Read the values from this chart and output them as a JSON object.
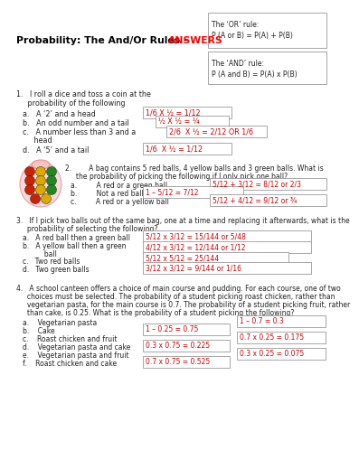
{
  "title_black": "Probability: The And/Or Rules - ",
  "title_red": "ANSWERS",
  "bg_color": "#ffffff",
  "or_rule_box": {
    "title": "The ‘OR’ rule:",
    "body": "P (A or B) = P(A) + P(B)"
  },
  "and_rule_box": {
    "title": "The ‘AND’ rule:",
    "body": "P (A and B) = P(A) x P(B)"
  },
  "q1_intro": "1.   I roll a dice and toss a coin at the\n     probability of the following",
  "q1_items": [
    "a.   A ‘2’ and a head",
    "b.   An odd number and a tail",
    "c.   A number less than 3 and a\n          head",
    "d.   A ‘5’ and a tail"
  ],
  "q1_answers": [
    "1/6 X ½ = 1/12",
    "½ X ½ = ¼",
    "2/6  X ½ = 2/12 OR 1/6",
    "1/6  X ½ = 1/12"
  ],
  "q2_line1": "2.        A bag contains 5 red balls, 4 yellow balls and 3 green balls. What is",
  "q2_line2": "     the probability of picking the following if I only pick one ball?",
  "q2_items": [
    "a.         A red or a green ball",
    "b.         Not a red ball",
    "c.         A red or a yellow ball"
  ],
  "q2_ans_mid": [
    "",
    "1 – 5/12 = 7/12",
    ""
  ],
  "q2_ans_right": [
    "5/12 + 3/12 = 8/12 or 2/3",
    "",
    "5/12 + 4/12 = 9/12 or ¾"
  ],
  "q3_line1": "3.   If I pick two balls out of the same bag, one at a time and replacing it afterwards, what is the",
  "q3_line2": "     probability of selecting the following?",
  "q3_items": [
    "a.   A red ball then a green ball",
    "b.   A yellow ball then a green\n          ball",
    "c.   Two red balls",
    "d.   Two green balls"
  ],
  "q3_answers": [
    "5/12 x 3/12 = 15/144 or 5/48",
    "4/12 x 3/12 = 12/144 or 1/12",
    "5/12 x 5/12 = 25/144",
    "3/12 x 3/12 = 9/144 or 1/16"
  ],
  "q4_line1": "4.   A school canteen offers a choice of main course and pudding. For each course, one of two",
  "q4_line2": "     choices must be selected. The probability of a student picking roast chicken, rather than",
  "q4_line3": "     vegetarian pasta, for the main course is 0.7. The probability of a student picking fruit, rather",
  "q4_line4": "     than cake, is 0.25. What is the probability of a student picking the following?",
  "q4_items": [
    "a.    Vegetarian pasta",
    "b.    Cake",
    "c.    Roast chicken and fruit",
    "d.    Vegetarian pasta and cake",
    "e.    Vegetarian pasta and fruit",
    "f.    Roast chicken and cake"
  ],
  "q4_ans_mid": [
    "",
    "1 – 0.25 = 0.75",
    "",
    "0.3 x 0.75 = 0.225",
    "",
    "0.7 x 0.75 = 0.525"
  ],
  "q4_ans_right": [
    "1 – 0.7 = 0.3",
    "",
    "0.7 x 0.25 = 0.175",
    "",
    "0.3 x 0.25 = 0.075",
    ""
  ],
  "answer_color": "#cc0000",
  "box_edge_color": "#999999",
  "text_color": "#222222",
  "ball_colors_row1": [
    "#cc2200",
    "#ddaa00",
    "#228822"
  ],
  "ball_colors_row2": [
    "#cc2200",
    "#ddaa00",
    "#228822"
  ],
  "ball_colors_row3": [
    "#cc2200",
    "#ddaa00",
    "#228822"
  ],
  "ball_colors_row4": [
    "#cc2200",
    "#ddaa00",
    "#228822"
  ]
}
